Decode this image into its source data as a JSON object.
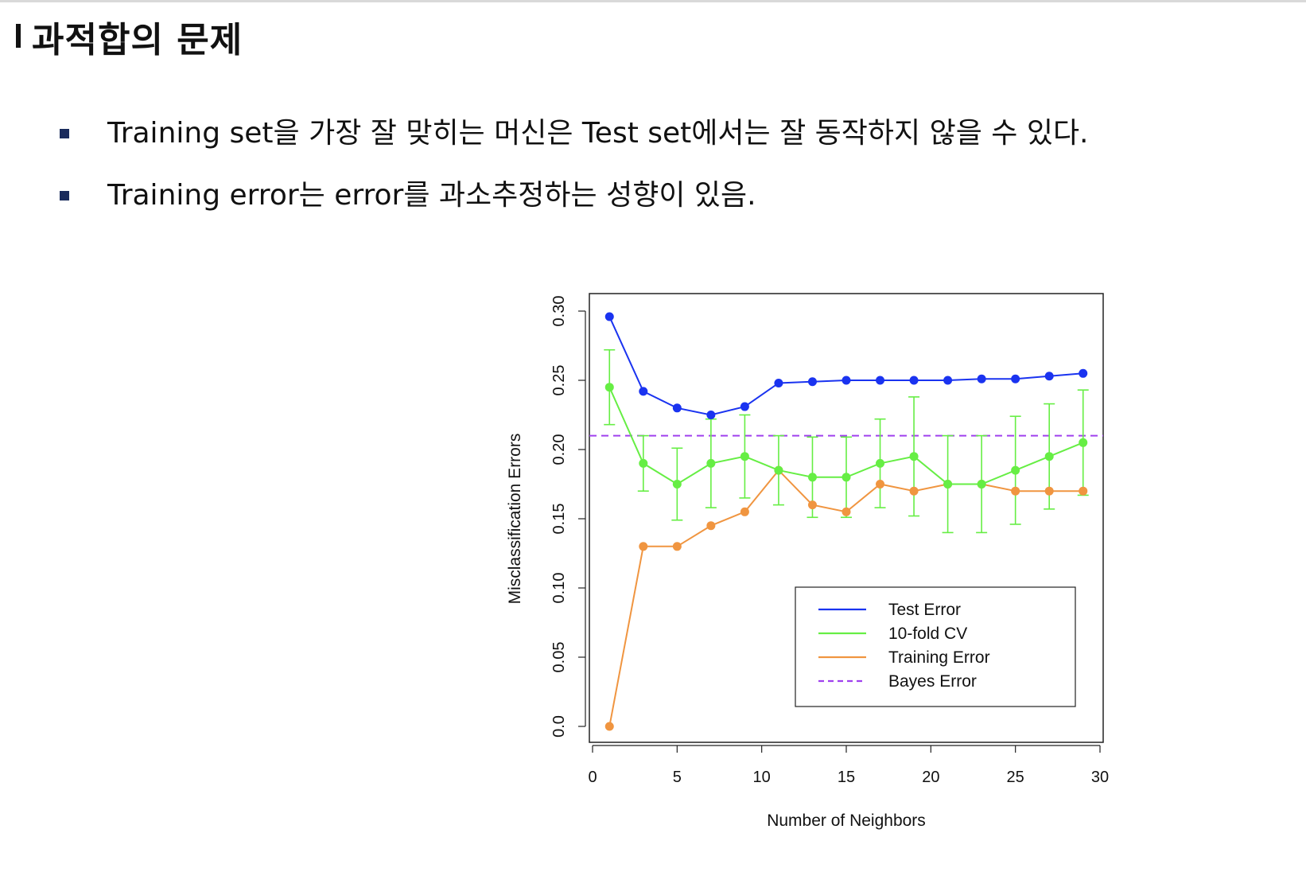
{
  "page": {
    "title": "과적합의 문제",
    "bullets": [
      "Training set을 가장 잘 맞히는 머신은 Test set에서는 잘 동작하지 않을 수 있다.",
      "Training error는 error를 과소추정하는 성향이 있음."
    ]
  },
  "chart_data": {
    "type": "line",
    "title": "",
    "xlabel": "Number of Neighbors",
    "ylabel": "Misclassification Errors",
    "xlim": [
      0,
      30
    ],
    "ylim": [
      0,
      0.3
    ],
    "xticks": [
      "0",
      "5",
      "10",
      "15",
      "20",
      "25",
      "30"
    ],
    "yticks": [
      "0.0",
      "0.05",
      "0.10",
      "0.15",
      "0.20",
      "0.25",
      "0.30"
    ],
    "x": [
      1,
      3,
      5,
      7,
      9,
      11,
      13,
      15,
      17,
      19,
      21,
      23,
      25,
      27,
      29
    ],
    "series": [
      {
        "name": "Test Error",
        "color": "#1a33f0",
        "values": [
          0.296,
          0.242,
          0.23,
          0.225,
          0.231,
          0.248,
          0.249,
          0.25,
          0.25,
          0.25,
          0.25,
          0.251,
          0.251,
          0.253,
          0.255
        ]
      },
      {
        "name": "10-fold CV",
        "color": "#66ee44",
        "values": [
          0.245,
          0.19,
          0.175,
          0.19,
          0.195,
          0.185,
          0.18,
          0.18,
          0.19,
          0.195,
          0.175,
          0.175,
          0.185,
          0.195,
          0.205
        ],
        "error": [
          0.027,
          0.02,
          0.026,
          0.032,
          0.03,
          0.025,
          0.029,
          0.029,
          0.032,
          0.043,
          0.035,
          0.035,
          0.039,
          0.038,
          0.038
        ]
      },
      {
        "name": "Training Error",
        "color": "#f09540",
        "values": [
          0.0,
          0.13,
          0.13,
          0.145,
          0.155,
          0.185,
          0.16,
          0.155,
          0.175,
          0.17,
          0.175,
          0.175,
          0.17,
          0.17,
          0.17
        ]
      }
    ],
    "hlines": [
      {
        "name": "Bayes Error",
        "value": 0.21,
        "color": "#a040ee",
        "style": "dashed"
      }
    ],
    "legend": {
      "position": "bottom-right",
      "entries": [
        {
          "label": "Test Error",
          "color": "#1a33f0",
          "style": "solid"
        },
        {
          "label": "10-fold CV",
          "color": "#66ee44",
          "style": "solid"
        },
        {
          "label": "Training Error",
          "color": "#f09540",
          "style": "solid"
        },
        {
          "label": "Bayes Error",
          "color": "#a040ee",
          "style": "dashed"
        }
      ]
    }
  }
}
